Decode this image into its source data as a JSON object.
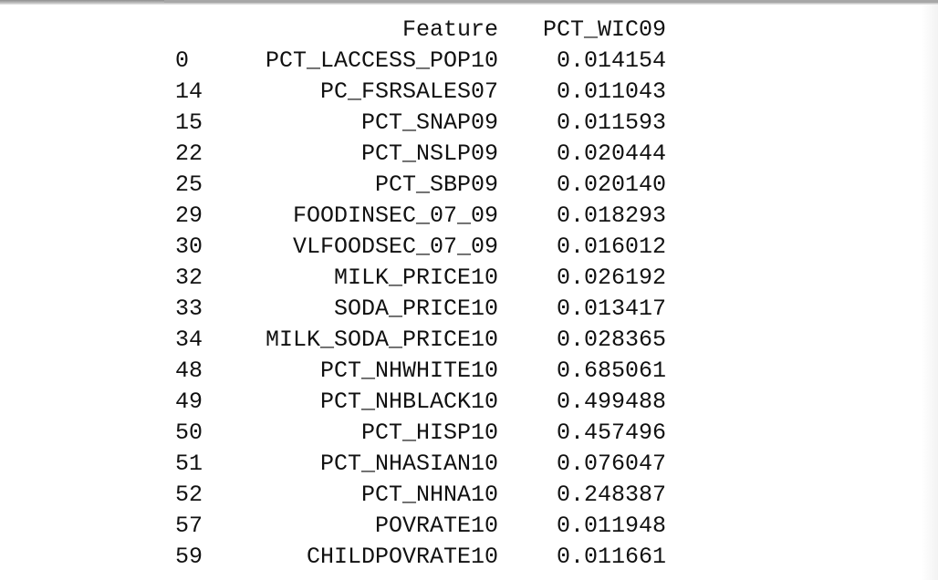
{
  "table": {
    "columns": [
      "Feature",
      "PCT_WIC09"
    ],
    "rows": [
      {
        "index": "0",
        "feature": "PCT_LACCESS_POP10",
        "value": "0.014154"
      },
      {
        "index": "14",
        "feature": "PC_FSRSALES07",
        "value": "0.011043"
      },
      {
        "index": "15",
        "feature": "PCT_SNAP09",
        "value": "0.011593"
      },
      {
        "index": "22",
        "feature": "PCT_NSLP09",
        "value": "0.020444"
      },
      {
        "index": "25",
        "feature": "PCT_SBP09",
        "value": "0.020140"
      },
      {
        "index": "29",
        "feature": "FOODINSEC_07_09",
        "value": "0.018293"
      },
      {
        "index": "30",
        "feature": "VLFOODSEC_07_09",
        "value": "0.016012"
      },
      {
        "index": "32",
        "feature": "MILK_PRICE10",
        "value": "0.026192"
      },
      {
        "index": "33",
        "feature": "SODA_PRICE10",
        "value": "0.013417"
      },
      {
        "index": "34",
        "feature": "MILK_SODA_PRICE10",
        "value": "0.028365"
      },
      {
        "index": "48",
        "feature": "PCT_NHWHITE10",
        "value": "0.685061"
      },
      {
        "index": "49",
        "feature": "PCT_NHBLACK10",
        "value": "0.499488"
      },
      {
        "index": "50",
        "feature": "PCT_HISP10",
        "value": "0.457496"
      },
      {
        "index": "51",
        "feature": "PCT_NHASIAN10",
        "value": "0.076047"
      },
      {
        "index": "52",
        "feature": "PCT_NHNA10",
        "value": "0.248387"
      },
      {
        "index": "57",
        "feature": "POVRATE10",
        "value": "0.011948"
      },
      {
        "index": "59",
        "feature": "CHILDPOVRATE10",
        "value": "0.011661"
      }
    ]
  }
}
